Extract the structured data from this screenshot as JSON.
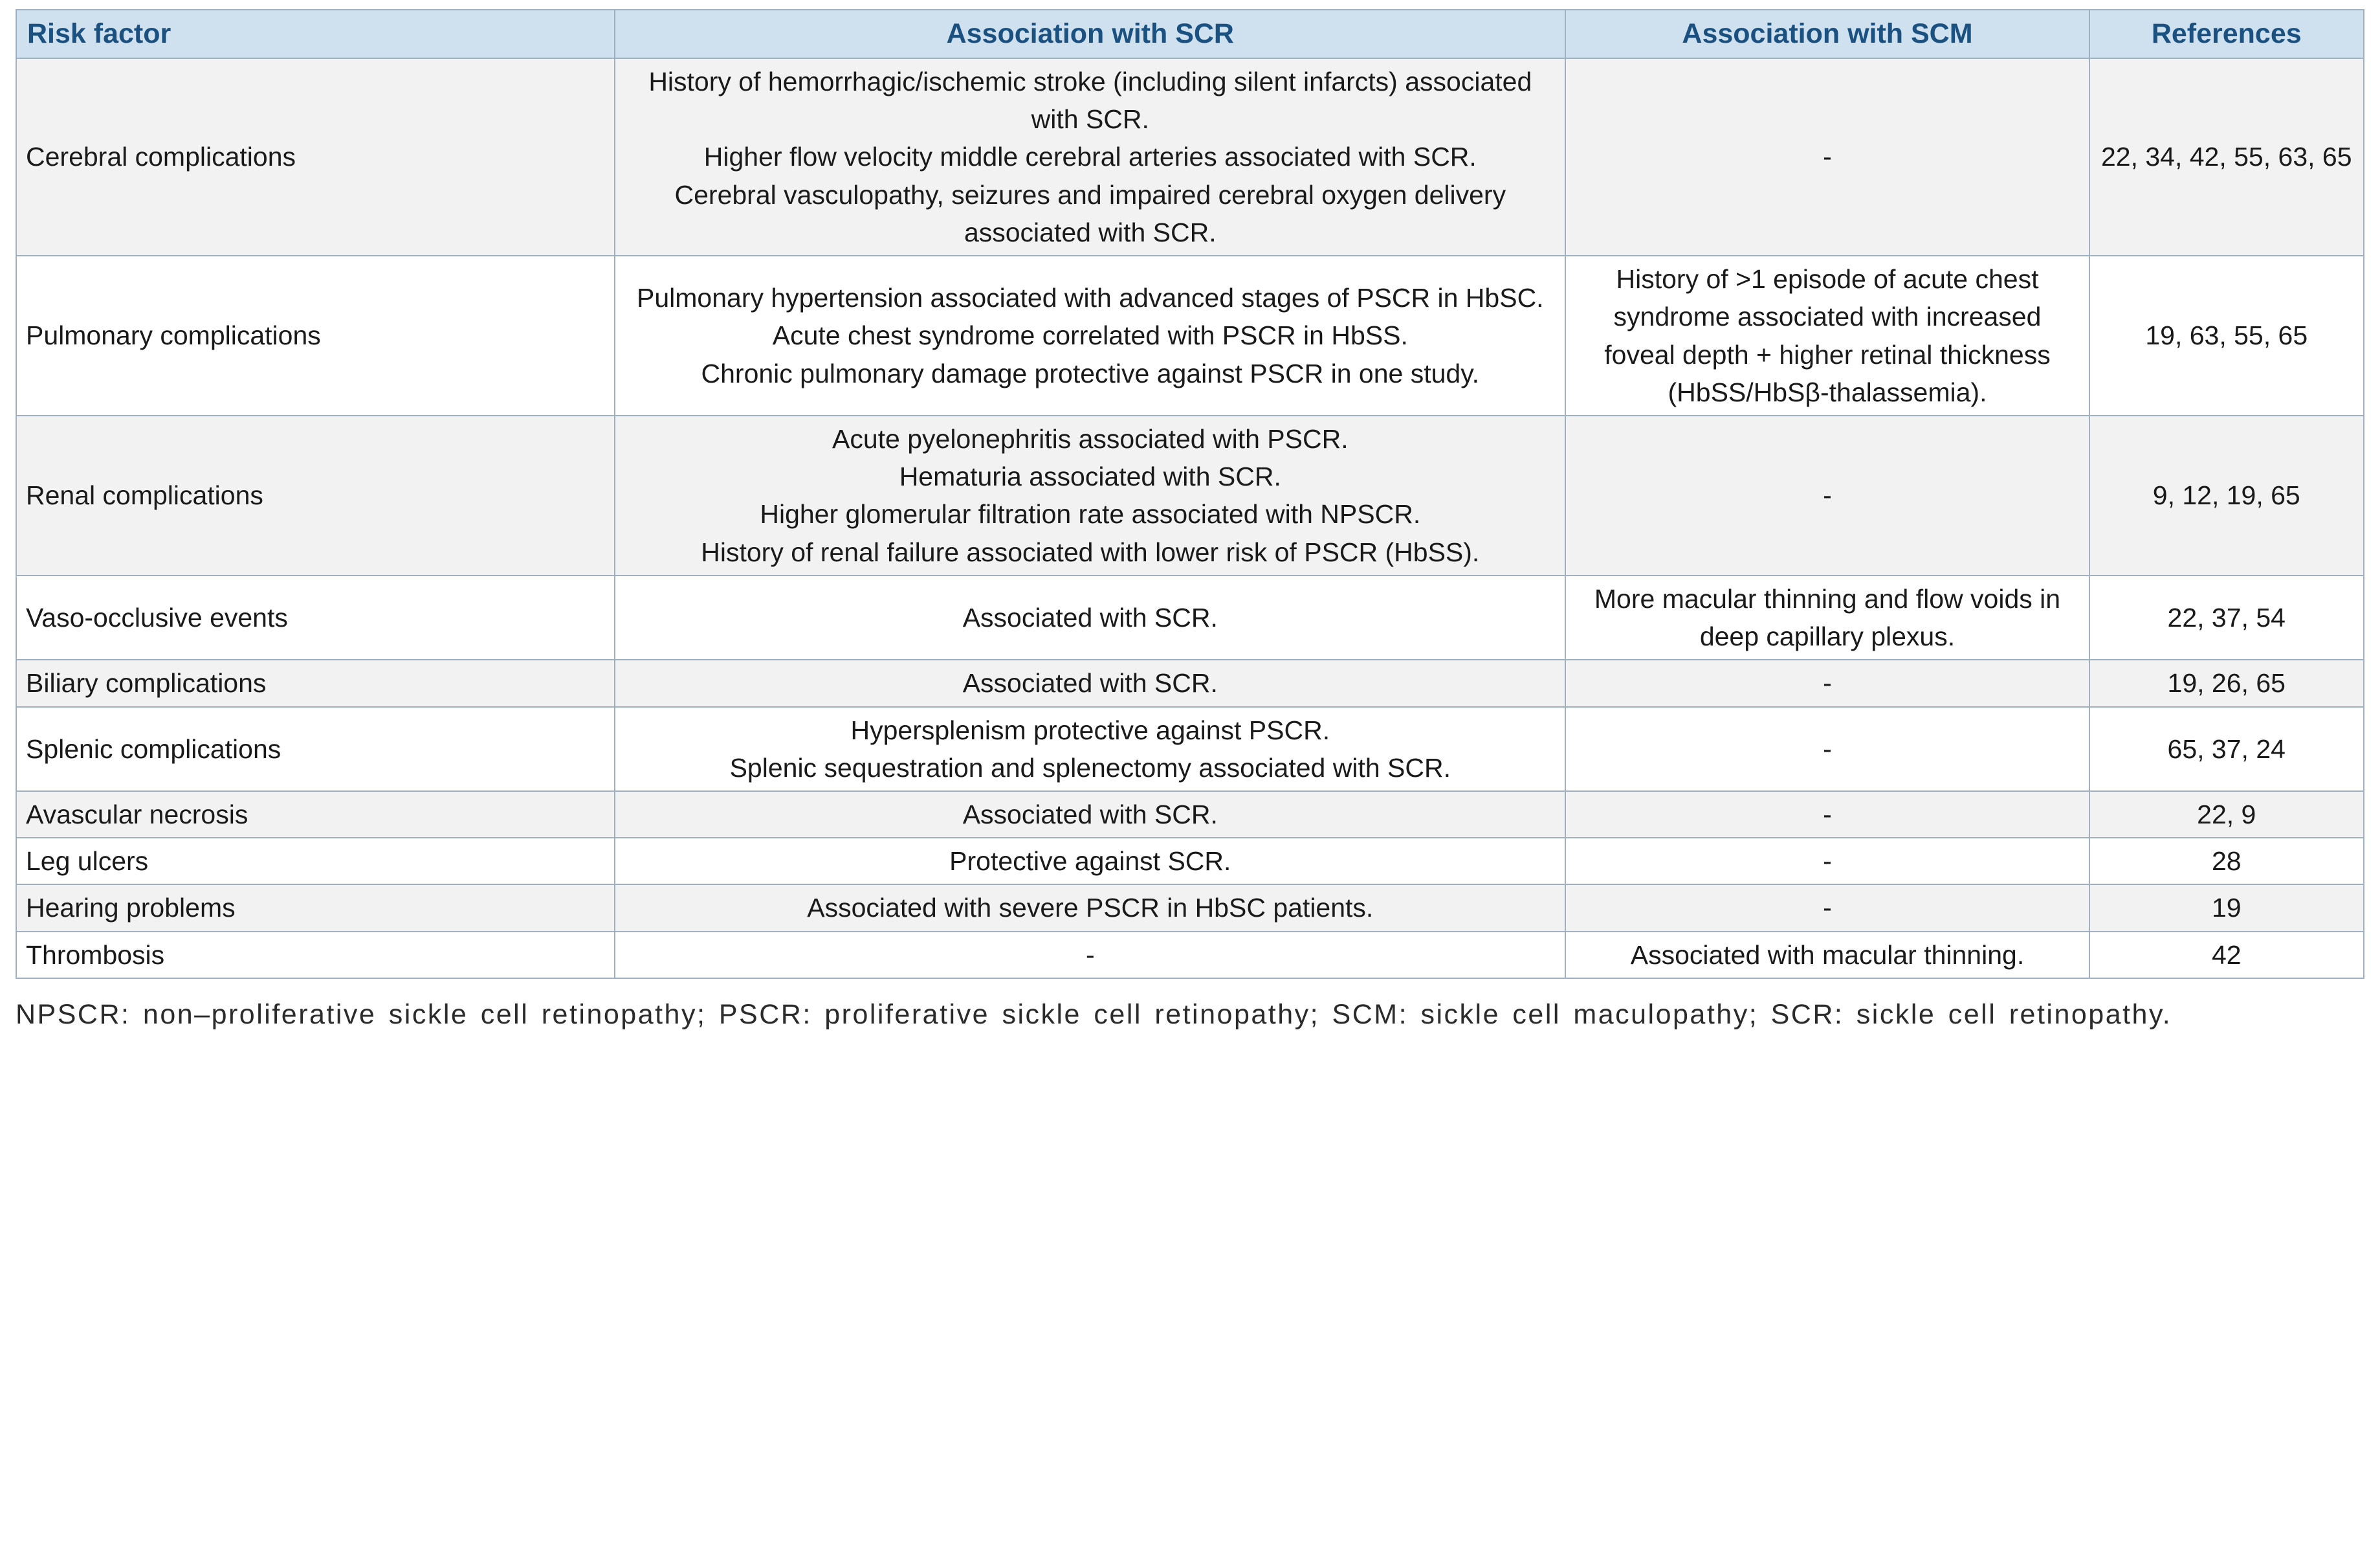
{
  "colors": {
    "header_background": "#cfe0ee",
    "header_text": "#1b5180",
    "border": "#9fb0c0",
    "row_stripe": "#f2f2f2",
    "body_text": "#1a1a1a"
  },
  "table": {
    "headers": [
      "Risk factor",
      "Association with SCR",
      "Association with SCM",
      "References"
    ],
    "rows": [
      {
        "risk_factor": "Cerebral complications",
        "scr": "History of hemorrhagic/ischemic stroke (including silent infarcts) associated with SCR.\nHigher flow velocity middle cerebral arteries associated with SCR.\nCerebral vasculopathy, seizures and impaired cerebral oxygen delivery associated with SCR.",
        "scm": "-",
        "references": "22, 34, 42, 55, 63, 65"
      },
      {
        "risk_factor": "Pulmonary complications",
        "scr": "Pulmonary hypertension associated with advanced stages of PSCR in HbSC.\nAcute chest syndrome correlated with PSCR in HbSS.\nChronic pulmonary damage protective against PSCR in one study.",
        "scm": "History of >1 episode of acute chest syndrome associated with increased foveal depth + higher retinal thickness (HbSS/HbSβ-thalassemia).",
        "references": "19, 63, 55, 65"
      },
      {
        "risk_factor": "Renal complications",
        "scr": "Acute pyelonephritis associated with PSCR.\nHematuria associated with SCR.\nHigher glomerular filtration rate associated with NPSCR.\nHistory of renal failure associated with lower risk of PSCR (HbSS).",
        "scm": "-",
        "references": "9, 12, 19, 65"
      },
      {
        "risk_factor": "Vaso-occlusive events",
        "scr": "Associated with SCR.",
        "scm": "More macular thinning and flow voids in deep capillary plexus.",
        "references": "22, 37, 54"
      },
      {
        "risk_factor": "Biliary complications",
        "scr": "Associated with SCR.",
        "scm": "-",
        "references": "19, 26, 65"
      },
      {
        "risk_factor": "Splenic complications",
        "scr": "Hypersplenism protective against PSCR.\nSplenic sequestration and splenectomy associated with SCR.",
        "scm": "-",
        "references": "65, 37, 24"
      },
      {
        "risk_factor": "Avascular necrosis",
        "scr": "Associated with SCR.",
        "scm": "-",
        "references": "22, 9"
      },
      {
        "risk_factor": "Leg ulcers",
        "scr": "Protective against SCR.",
        "scm": "-",
        "references": "28"
      },
      {
        "risk_factor": "Hearing problems",
        "scr": "Associated with severe PSCR in HbSC patients.",
        "scm": "-",
        "references": "19"
      },
      {
        "risk_factor": "Thrombosis",
        "scr": "-",
        "scm": "Associated with macular thinning.",
        "references": "42"
      }
    ]
  },
  "footnote": "NPSCR: non–proliferative sickle cell retinopathy; PSCR: proliferative sickle cell retinopathy; SCM: sickle cell maculopathy; SCR: sickle cell retinopathy."
}
